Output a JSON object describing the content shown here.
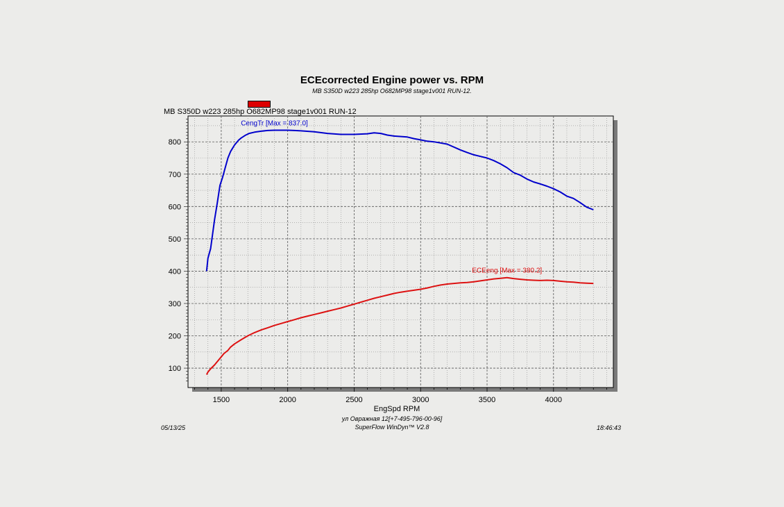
{
  "chart_data": {
    "type": "line",
    "title": "ECEcorrected Engine power vs. RPM",
    "subtitle": "MB S350D w223 285hp O682MP98 stage1v001 RUN-12.",
    "xlabel": "EngSpd  RPM",
    "ylabel": "",
    "xlim": [
      1250,
      4450
    ],
    "ylim": [
      40,
      880
    ],
    "x_ticks": [
      1500,
      2000,
      2500,
      3000,
      3500,
      4000
    ],
    "y_ticks": [
      100,
      200,
      300,
      400,
      500,
      600,
      700,
      800
    ],
    "grid": true,
    "legend": {
      "label": "MB S350D w223 285hp O682MP98 stage1v001 RUN-12",
      "color": "#dd0000",
      "placement": "top-left"
    },
    "series": [
      {
        "name": "CengTr",
        "annotation": "CengTr [Max = 837.0]",
        "color": "#0000cc",
        "x": [
          1390,
          1400,
          1420,
          1440,
          1450,
          1470,
          1490,
          1510,
          1530,
          1550,
          1570,
          1600,
          1630,
          1650,
          1680,
          1710,
          1750,
          1800,
          1850,
          1900,
          1950,
          2000,
          2050,
          2100,
          2200,
          2300,
          2400,
          2500,
          2600,
          2650,
          2700,
          2750,
          2800,
          2900,
          2950,
          3000,
          3050,
          3100,
          3200,
          3300,
          3350,
          3400,
          3450,
          3500,
          3550,
          3600,
          3650,
          3700,
          3750,
          3800,
          3850,
          3900,
          3950,
          4000,
          4050,
          4100,
          4150,
          4200,
          4250,
          4300
        ],
        "values": [
          400,
          440,
          470,
          530,
          560,
          610,
          665,
          690,
          720,
          750,
          770,
          790,
          805,
          812,
          820,
          826,
          830,
          833,
          835,
          836,
          836,
          836,
          835,
          834,
          831,
          826,
          823,
          823,
          825,
          828,
          826,
          821,
          818,
          815,
          810,
          806,
          802,
          800,
          793,
          775,
          767,
          760,
          755,
          750,
          742,
          732,
          720,
          705,
          697,
          685,
          676,
          670,
          663,
          655,
          645,
          632,
          625,
          612,
          598,
          590
        ]
      },
      {
        "name": "ECEeng",
        "annotation": "ECEeng [Max = 380.2]",
        "color": "#dd1111",
        "x": [
          1390,
          1400,
          1420,
          1450,
          1470,
          1500,
          1520,
          1550,
          1570,
          1600,
          1650,
          1700,
          1750,
          1800,
          1850,
          1900,
          1950,
          2000,
          2050,
          2100,
          2150,
          2200,
          2250,
          2300,
          2350,
          2400,
          2450,
          2500,
          2550,
          2600,
          2650,
          2700,
          2750,
          2800,
          2850,
          2900,
          2950,
          3000,
          3050,
          3100,
          3150,
          3200,
          3250,
          3300,
          3350,
          3400,
          3450,
          3500,
          3550,
          3600,
          3650,
          3700,
          3750,
          3800,
          3850,
          3900,
          3950,
          4000,
          4050,
          4100,
          4150,
          4200,
          4250,
          4300
        ],
        "values": [
          80,
          88,
          98,
          110,
          120,
          135,
          145,
          155,
          165,
          175,
          188,
          200,
          210,
          218,
          225,
          232,
          238,
          244,
          250,
          256,
          261,
          266,
          271,
          276,
          281,
          286,
          292,
          298,
          304,
          310,
          316,
          321,
          326,
          331,
          335,
          338,
          341,
          344,
          348,
          353,
          357,
          360,
          362,
          364,
          365,
          367,
          370,
          373,
          376,
          378,
          380,
          377,
          375,
          373,
          372,
          371,
          372,
          371,
          369,
          367,
          366,
          364,
          363,
          362
        ]
      }
    ]
  },
  "footer": {
    "address": "ул Овражная 12[+7-495-796-00-96]",
    "software": "SuperFlow WinDyn™ V2.8",
    "date": "05/13/25",
    "time": "18:46:43"
  }
}
